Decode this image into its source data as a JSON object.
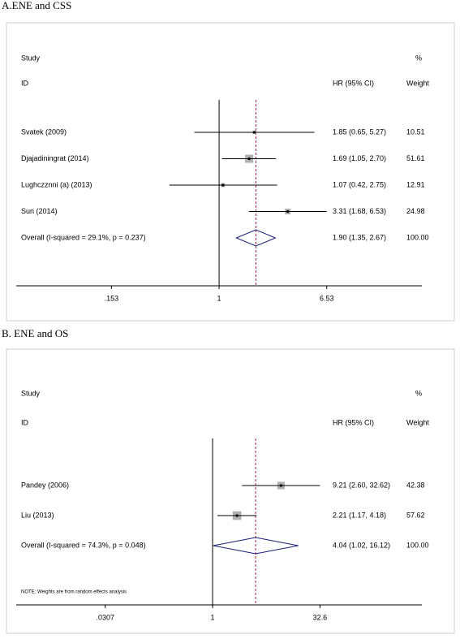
{
  "chart_data": [
    {
      "type": "forest",
      "title": "A.ENE and CSS",
      "headers": {
        "study": "Study",
        "id": "ID",
        "effect": "HR (95% CI)",
        "pct": "%",
        "weight": "Weight"
      },
      "studies": [
        "Svatek (2009)",
        "Djajadiningrat (2014)",
        "Lughczznni (a) (2013)",
        "Sun (2014)"
      ],
      "values": [
        1.85,
        1.69,
        1.07,
        3.31
      ],
      "lower": [
        0.65,
        1.05,
        0.42,
        1.68
      ],
      "upper": [
        5.27,
        2.7,
        2.75,
        6.53
      ],
      "value_labels": [
        "1.85 (0.65, 5.27)",
        "1.69 (1.05, 2.70)",
        "1.07 (0.42, 2.75)",
        "3.31 (1.68, 6.53)"
      ],
      "weights": [
        10.51,
        51.61,
        12.91,
        24.98
      ],
      "overall": {
        "label": "Overall  (I-squared = 29.1%, p = 0.237)",
        "value": 1.9,
        "lower": 1.35,
        "upper": 2.67,
        "value_label": "1.90 (1.35, 2.67)",
        "weight_label": "100.00"
      },
      "xlog": true,
      "xlim": [
        0.0291,
        34.3
      ],
      "xticks": [
        {
          "value": 0.153,
          "label": ".153"
        },
        1,
        6.53
      ],
      "marker_color": "#b0b0b0",
      "diamond_color": "#1a1a80",
      "ref_color": "#a0203c"
    },
    {
      "type": "forest",
      "title": "B. ENE and OS",
      "headers": {
        "study": "Study",
        "id": "ID",
        "effect": "HR (95% CI)",
        "pct": "%",
        "weight": "Weight"
      },
      "studies": [
        "Pandey (2006)",
        "Liu (2013)"
      ],
      "values": [
        9.21,
        2.21
      ],
      "lower": [
        2.6,
        1.17
      ],
      "upper": [
        32.62,
        4.18
      ],
      "value_labels": [
        "9.21 (2.60, 32.62)",
        "2.21 (1.17, 4.18)"
      ],
      "weights": [
        42.38,
        57.62
      ],
      "overall": {
        "label": "Overall  (I-squared = 74.3%, p = 0.048)",
        "value": 4.04,
        "lower": 1.02,
        "upper": 16.12,
        "value_label": "4.04 (1.02, 16.12)",
        "weight_label": "100.00"
      },
      "note": "NOTE: Weights are from random effects analysis",
      "xlog": true,
      "xlim": [
        0.00171,
        889
      ],
      "xticks": [
        {
          "value": 0.0307,
          "label": ".0307"
        },
        1,
        32.6
      ],
      "marker_color": "#b0b0b0",
      "diamond_color": "#1a1a80",
      "ref_color": "#a0203c"
    }
  ]
}
